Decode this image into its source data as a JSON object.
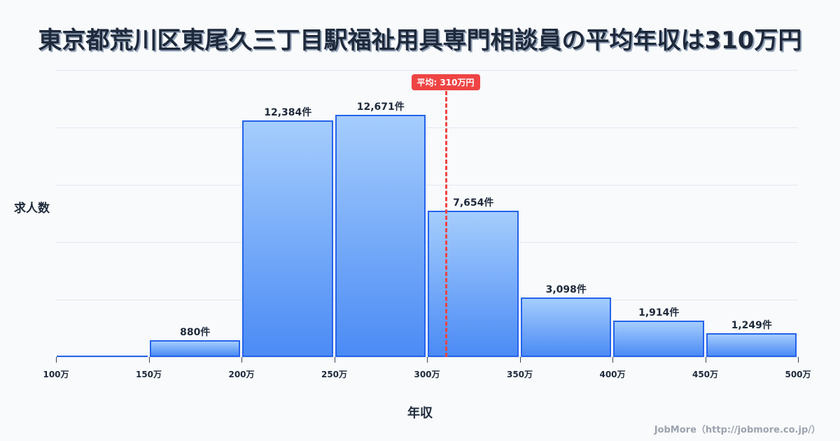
{
  "title": "東京都荒川区東尾久三丁目駅福祉用具専門相談員の平均年収は310万円",
  "y_axis_label": "求人数",
  "x_axis_label": "年収",
  "average_badge": "平均: 310万円",
  "footer": "JobMore（http://jobmore.co.jp/）",
  "colors": {
    "bar_border": "#2563eb",
    "bar_top": "#a5cdfd",
    "bar_bottom": "#4b8bf5",
    "average_line": "#ef4444"
  },
  "chart_data": {
    "type": "bar",
    "title": "東京都荒川区東尾久三丁目駅福祉用具専門相談員の平均年収は310万円",
    "xlabel": "年収",
    "ylabel": "求人数",
    "x_ticks": [
      "100万",
      "150万",
      "200万",
      "250万",
      "300万",
      "350万",
      "400万",
      "450万",
      "500万"
    ],
    "categories": [
      "100-150万",
      "150-200万",
      "200-250万",
      "250-300万",
      "300-350万",
      "350-400万",
      "400-450万",
      "450-500万"
    ],
    "values": [
      0,
      880,
      12384,
      12671,
      7654,
      3098,
      1914,
      1249
    ],
    "value_labels": [
      "",
      "880件",
      "12,384件",
      "12,671件",
      "7,654件",
      "3,098件",
      "1,914件",
      "1,249件"
    ],
    "ylim": [
      0,
      15000
    ],
    "grid": true,
    "average": {
      "value": 310,
      "label": "平均: 310万円"
    }
  }
}
